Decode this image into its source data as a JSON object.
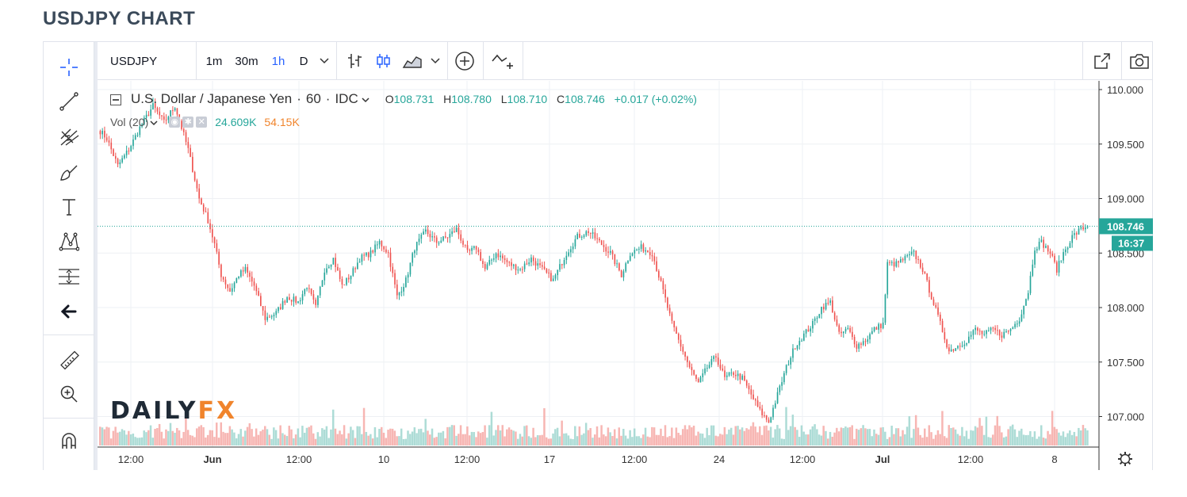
{
  "page_title": "USDJPY CHART",
  "toolbar": {
    "symbol": "USDJPY",
    "intervals": [
      "1m",
      "30m",
      "1h",
      "D"
    ],
    "active_interval": "1h"
  },
  "legend": {
    "name": "U.S. Dollar / Japanese Yen",
    "separator": "·",
    "interval": "60",
    "source": "IDC",
    "ohlc": [
      {
        "key": "O",
        "value": "108.731"
      },
      {
        "key": "H",
        "value": "108.780"
      },
      {
        "key": "L",
        "value": "108.710"
      },
      {
        "key": "C",
        "value": "108.746"
      }
    ],
    "change": "+0.017 (+0.02%)",
    "volume_label": "Vol (20)",
    "volume_value": "24.609K",
    "volume_ma": "54.15K"
  },
  "logo": {
    "part1": "DAILY",
    "part2": "FX"
  },
  "colors": {
    "up": "#26a69a",
    "down": "#ef5350",
    "vol_up": "#9fd6cf",
    "vol_down": "#f6a9a6",
    "vol_ma": "#f0842c",
    "last_price_bg": "#26a69a"
  },
  "chart_data": {
    "type": "candlestick",
    "ylim": [
      106.72,
      110.08
    ],
    "y_ticks": [
      "110.000",
      "109.500",
      "109.000",
      "108.500",
      "108.000",
      "107.500",
      "107.000"
    ],
    "y_tick_values": [
      110.0,
      109.5,
      109.0,
      108.5,
      108.0,
      107.5,
      107.0
    ],
    "x_tick_labels": [
      "12:00",
      "Jun",
      "12:00",
      "10",
      "12:00",
      "17",
      "12:00",
      "24",
      "12:00",
      "Jul",
      "12:00",
      "8"
    ],
    "x_tick_bold": [
      false,
      true,
      false,
      false,
      false,
      false,
      false,
      false,
      false,
      true,
      false,
      false
    ],
    "last_price": "108.746",
    "last_price_value": 108.746,
    "countdown": "16:37",
    "close_path": [
      [
        0,
        109.62
      ],
      [
        3,
        109.55
      ],
      [
        8,
        109.3
      ],
      [
        13,
        109.45
      ],
      [
        18,
        109.65
      ],
      [
        24,
        109.85
      ],
      [
        29,
        109.7
      ],
      [
        34,
        109.85
      ],
      [
        40,
        109.45
      ],
      [
        45,
        109.0
      ],
      [
        49,
        108.8
      ],
      [
        52,
        108.58
      ],
      [
        55,
        108.3
      ],
      [
        59,
        108.15
      ],
      [
        63,
        108.3
      ],
      [
        66,
        108.35
      ],
      [
        70,
        108.2
      ],
      [
        75,
        107.9
      ],
      [
        80,
        107.95
      ],
      [
        85,
        108.1
      ],
      [
        90,
        108.05
      ],
      [
        94,
        108.2
      ],
      [
        98,
        108.0
      ],
      [
        102,
        108.35
      ],
      [
        106,
        108.45
      ],
      [
        110,
        108.2
      ],
      [
        114,
        108.3
      ],
      [
        118,
        108.45
      ],
      [
        123,
        108.5
      ],
      [
        127,
        108.6
      ],
      [
        131,
        108.5
      ],
      [
        135,
        108.1
      ],
      [
        139,
        108.25
      ],
      [
        143,
        108.55
      ],
      [
        148,
        108.7
      ],
      [
        153,
        108.6
      ],
      [
        158,
        108.65
      ],
      [
        162,
        108.72
      ],
      [
        167,
        108.5
      ],
      [
        171,
        108.55
      ],
      [
        175,
        108.35
      ],
      [
        180,
        108.5
      ],
      [
        186,
        108.4
      ],
      [
        191,
        108.35
      ],
      [
        196,
        108.45
      ],
      [
        201,
        108.35
      ],
      [
        206,
        108.25
      ],
      [
        212,
        108.5
      ],
      [
        217,
        108.65
      ],
      [
        222,
        108.7
      ],
      [
        227,
        108.6
      ],
      [
        232,
        108.5
      ],
      [
        237,
        108.3
      ],
      [
        241,
        108.5
      ],
      [
        246,
        108.55
      ],
      [
        251,
        108.5
      ],
      [
        256,
        108.15
      ],
      [
        260,
        107.85
      ],
      [
        264,
        107.65
      ],
      [
        268,
        107.45
      ],
      [
        272,
        107.3
      ],
      [
        276,
        107.45
      ],
      [
        280,
        107.55
      ],
      [
        284,
        107.35
      ],
      [
        288,
        107.4
      ],
      [
        292,
        107.35
      ],
      [
        296,
        107.2
      ],
      [
        300,
        107.05
      ],
      [
        304,
        106.95
      ],
      [
        308,
        107.2
      ],
      [
        312,
        107.45
      ],
      [
        316,
        107.65
      ],
      [
        320,
        107.75
      ],
      [
        324,
        107.85
      ],
      [
        328,
        108.0
      ],
      [
        332,
        108.05
      ],
      [
        336,
        107.75
      ],
      [
        340,
        107.8
      ],
      [
        344,
        107.65
      ],
      [
        348,
        107.7
      ],
      [
        352,
        107.8
      ],
      [
        356,
        107.85
      ],
      [
        358,
        108.4
      ],
      [
        362,
        108.4
      ],
      [
        366,
        108.45
      ],
      [
        370,
        108.5
      ],
      [
        374,
        108.35
      ],
      [
        378,
        108.1
      ],
      [
        382,
        107.85
      ],
      [
        386,
        107.6
      ],
      [
        390,
        107.65
      ],
      [
        394,
        107.7
      ],
      [
        398,
        107.8
      ],
      [
        402,
        107.75
      ],
      [
        406,
        107.8
      ],
      [
        410,
        107.75
      ],
      [
        414,
        107.8
      ],
      [
        418,
        107.9
      ],
      [
        422,
        108.15
      ],
      [
        425,
        108.55
      ],
      [
        428,
        108.6
      ],
      [
        432,
        108.5
      ],
      [
        435,
        108.35
      ],
      [
        438,
        108.5
      ],
      [
        442,
        108.65
      ],
      [
        446,
        108.72
      ],
      [
        449,
        108.746
      ]
    ]
  }
}
